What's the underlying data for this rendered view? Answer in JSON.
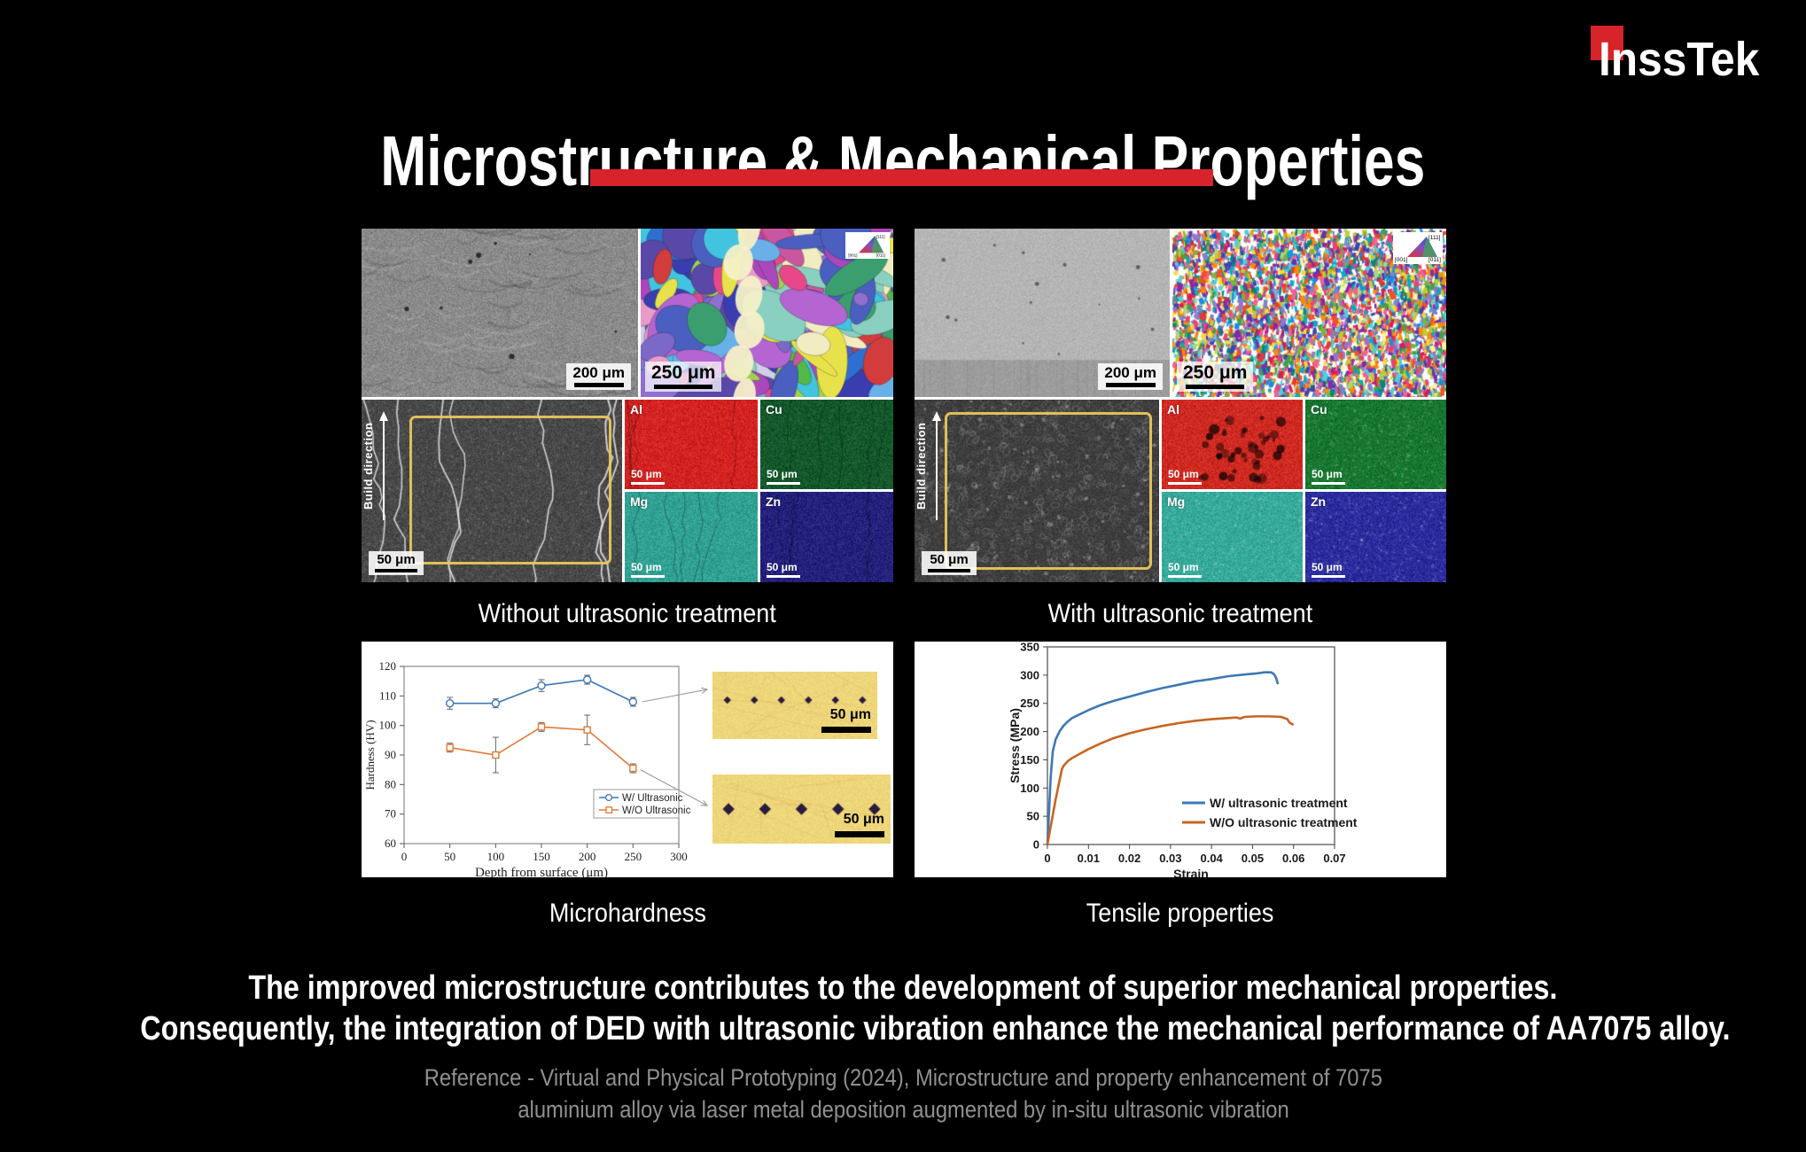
{
  "brand": {
    "name": "InssTek",
    "accent": "#d7232a"
  },
  "title": "Microstructure & Mechanical Properties",
  "colors": {
    "background": "#000000",
    "accent_red": "#d7232a",
    "reference_gray": "#909090",
    "chart_blue": "#3c78b4",
    "chart_orange_hardness": "#de7b38",
    "chart_orange_tensile": "#c86420"
  },
  "micro_panels": [
    {
      "id": "without",
      "caption": "Without ultrasonic treatment",
      "labels": {
        "sem_scale": "200 μm",
        "ebsd_scale": "250 μm",
        "build_direction": "Build direction",
        "sem2_scale": "50 μm"
      },
      "ipf": {
        "top": "[111]",
        "bl": "[001]",
        "br": "[011]"
      },
      "eds": [
        {
          "element": "Al",
          "scale": "50 μm",
          "color": "#d32322"
        },
        {
          "element": "Cu",
          "scale": "50 μm",
          "color": "#14582c"
        },
        {
          "element": "Mg",
          "scale": "50 μm",
          "color": "#31a193"
        },
        {
          "element": "Zn",
          "scale": "50 μm",
          "color": "#24217c"
        }
      ]
    },
    {
      "id": "with",
      "caption": "With ultrasonic treatment",
      "labels": {
        "sem_scale": "200 μm",
        "ebsd_scale": "250 μm",
        "build_direction": "Build direction",
        "sem2_scale": "50 μm"
      },
      "ipf": {
        "top": "[111]",
        "bl": "[001]",
        "br": "[011]"
      },
      "eds": [
        {
          "element": "Al",
          "scale": "50 μm",
          "color": "#cf2a22"
        },
        {
          "element": "Cu",
          "scale": "50 μm",
          "color": "#17762f"
        },
        {
          "element": "Mg",
          "scale": "50 μm",
          "color": "#35a99a"
        },
        {
          "element": "Zn",
          "scale": "50 μm",
          "color": "#2b2b9e"
        }
      ]
    }
  ],
  "chart_data": [
    {
      "type": "line",
      "title": "Microhardness",
      "xlabel": "Depth from surface (μm)",
      "ylabel": "Hardness (HV)",
      "xlim": [
        0,
        300
      ],
      "ylim": [
        60,
        120
      ],
      "xticks": [
        0,
        50,
        100,
        150,
        200,
        250,
        300
      ],
      "yticks": [
        60,
        70,
        80,
        90,
        100,
        110,
        120
      ],
      "grid": false,
      "legend_position": "inside-bottom-right",
      "x": [
        50,
        100,
        150,
        200,
        250
      ],
      "series": [
        {
          "name": "W/ Ultrasonic",
          "color": "#3c78b4",
          "marker": "circle",
          "values": [
            107.5,
            107.5,
            113.5,
            115.5,
            108
          ],
          "errors": [
            2,
            1.5,
            2,
            1.5,
            1.5
          ]
        },
        {
          "name": "W/O Ultrasonic",
          "color": "#de7b38",
          "marker": "square",
          "values": [
            92.5,
            90,
            99.5,
            98.5,
            85.5
          ],
          "errors": [
            1.5,
            6,
            1.5,
            5,
            1.5
          ]
        }
      ],
      "indent_strips": [
        {
          "diamonds": 6,
          "scale": "50 μm"
        },
        {
          "diamonds": 5,
          "scale": "50 μm"
        }
      ]
    },
    {
      "type": "line",
      "title": "Tensile properties",
      "xlabel": "Strain",
      "ylabel": "Stress (MPa)",
      "xlim": [
        0,
        0.07
      ],
      "ylim": [
        0,
        350
      ],
      "xticks": [
        0,
        0.01,
        0.02,
        0.03,
        0.04,
        0.05,
        0.06,
        0.07
      ],
      "yticks": [
        0,
        50,
        100,
        150,
        200,
        250,
        300,
        350
      ],
      "grid": false,
      "legend_position": "inside-right",
      "series": [
        {
          "name": "W/ ultrasonic treatment",
          "color": "#3c78b4",
          "points": [
            [
              0,
              0
            ],
            [
              0.0008,
              120
            ],
            [
              0.0013,
              165
            ],
            [
              0.002,
              186
            ],
            [
              0.003,
              201
            ],
            [
              0.004,
              211
            ],
            [
              0.005,
              218
            ],
            [
              0.006,
              224
            ],
            [
              0.008,
              231
            ],
            [
              0.01,
              238
            ],
            [
              0.013,
              247
            ],
            [
              0.016,
              254
            ],
            [
              0.02,
              262
            ],
            [
              0.024,
              270
            ],
            [
              0.028,
              277
            ],
            [
              0.032,
              283
            ],
            [
              0.036,
              289
            ],
            [
              0.04,
              293
            ],
            [
              0.044,
              298
            ],
            [
              0.048,
              301
            ],
            [
              0.051,
              303
            ],
            [
              0.053,
              305
            ],
            [
              0.0545,
              305
            ],
            [
              0.0552,
              302
            ],
            [
              0.0557,
              296
            ],
            [
              0.0562,
              284
            ]
          ]
        },
        {
          "name": "W/O ultrasonic treatment",
          "color": "#c86420",
          "points": [
            [
              0,
              0
            ],
            [
              0.001,
              40
            ],
            [
              0.002,
              80
            ],
            [
              0.003,
              115
            ],
            [
              0.0035,
              133
            ],
            [
              0.004,
              140
            ],
            [
              0.005,
              148
            ],
            [
              0.006,
              153
            ],
            [
              0.008,
              161
            ],
            [
              0.01,
              169
            ],
            [
              0.013,
              179
            ],
            [
              0.016,
              188
            ],
            [
              0.02,
              197
            ],
            [
              0.024,
              204
            ],
            [
              0.028,
              210
            ],
            [
              0.032,
              215
            ],
            [
              0.036,
              219
            ],
            [
              0.04,
              222
            ],
            [
              0.044,
              224
            ],
            [
              0.046,
              225
            ],
            [
              0.047,
              223
            ],
            [
              0.048,
              226
            ],
            [
              0.051,
              227
            ],
            [
              0.054,
              227
            ],
            [
              0.057,
              226
            ],
            [
              0.0585,
              222
            ],
            [
              0.059,
              216
            ],
            [
              0.06,
              212
            ]
          ]
        }
      ]
    }
  ],
  "statement": {
    "line1": "The improved microstructure contributes to the development of superior mechanical properties.",
    "line2": "Consequently, the integration of DED with ultrasonic vibration enhance the mechanical performance of AA7075 alloy."
  },
  "reference": {
    "line1": "Reference - Virtual and Physical Prototyping (2024), Microstructure and property enhancement of 7075",
    "line2": "aluminium alloy via laser metal deposition augmented by in-situ ultrasonic vibration"
  }
}
